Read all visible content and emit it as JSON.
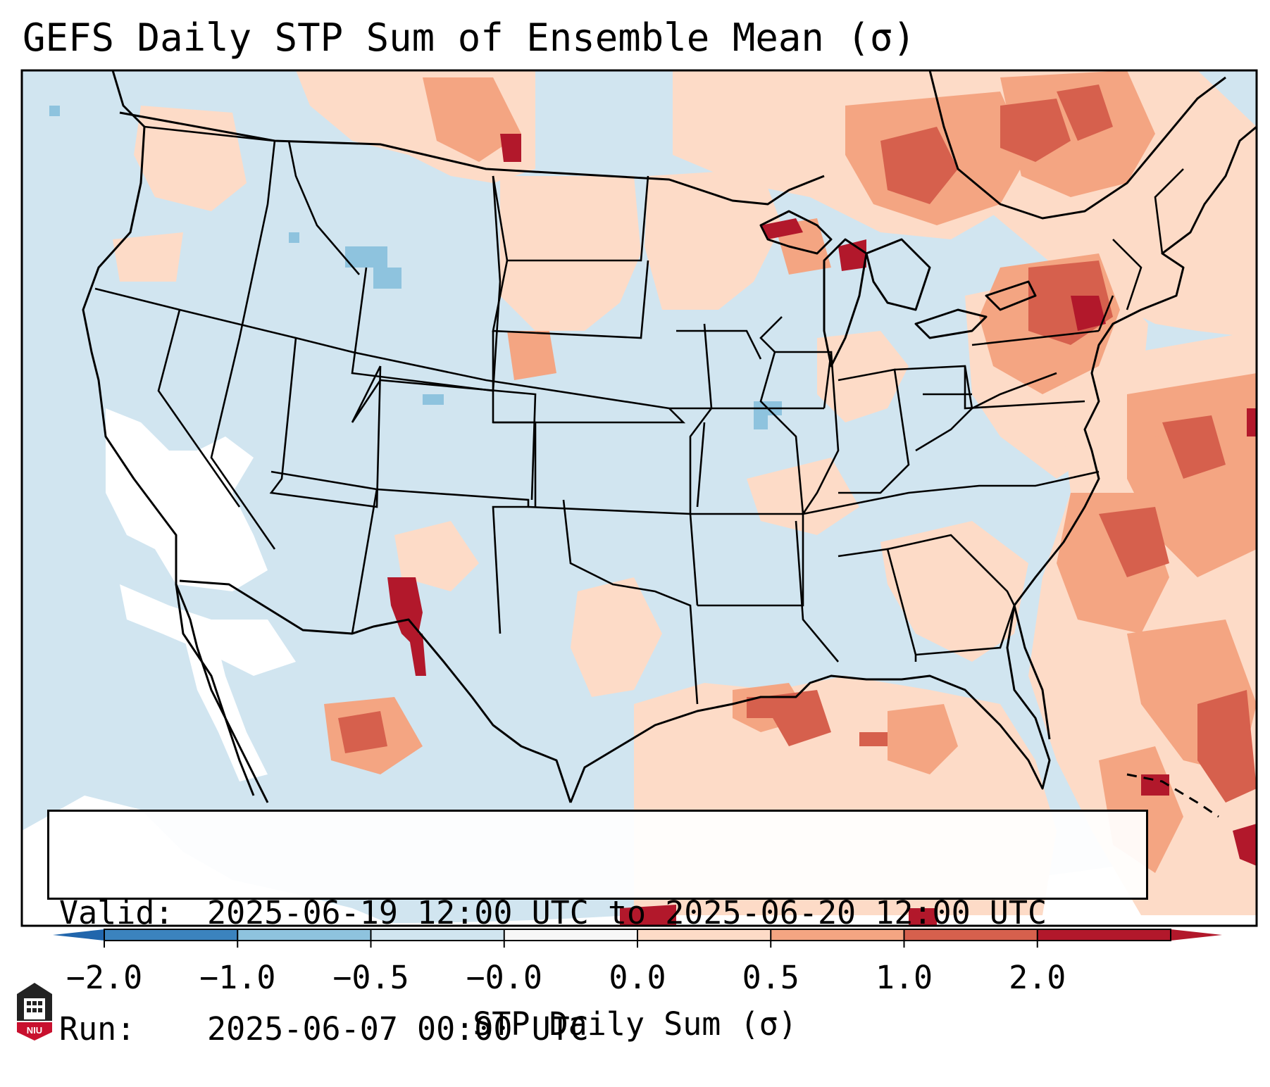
{
  "title": "GEFS Daily STP Sum of Ensemble Mean (σ)",
  "info": {
    "valid_key": "Valid:",
    "valid_value": "2025-06-19 12:00 UTC to 2025-06-20 12:00 UTC",
    "run_key": "Run:",
    "run_value": "2025-06-07 00:00 UTC"
  },
  "colorbar": {
    "label": "STP Daily Sum (σ)",
    "ticks": [
      "−2.0",
      "−1.0",
      "−0.5",
      "−0.0",
      "0.0",
      "0.5",
      "1.0",
      "2.0"
    ],
    "colors": [
      "#3b83be",
      "#8ec3de",
      "#d1e5f0",
      "#f7f7f7",
      "#fddbc7",
      "#f4a582",
      "#d6604d",
      "#b2182b"
    ],
    "extend_low_color": "#2166ac",
    "extend_high_color": "#b2182b"
  },
  "map": {
    "background_color": "#d1e5f0",
    "ocean_sw_color": "#ffffff",
    "region": "Continental United States"
  },
  "logo": {
    "text": "NIU",
    "color": "#c8102e"
  }
}
